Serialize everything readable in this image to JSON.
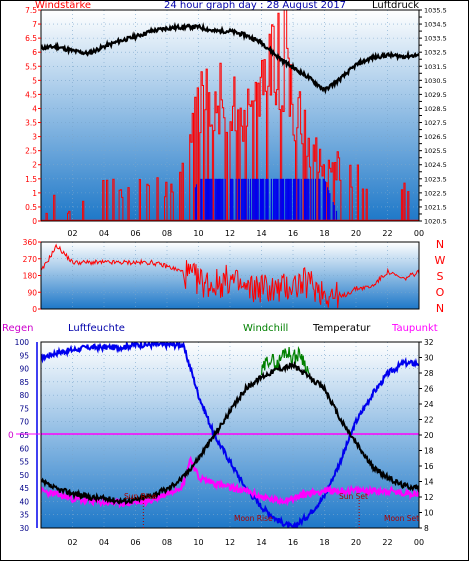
{
  "header": {
    "title": "24 hour graph day : 28 August 2017",
    "left_label": "Windstärke",
    "right_label": "Luftdruck"
  },
  "colors": {
    "red": "#ff0000",
    "blue": "#0000ee",
    "black": "#000000",
    "green": "#008000",
    "magenta": "#ff00ff",
    "navy": "#000088",
    "plot_top": "#ffffff",
    "plot_bottom": "#1e78c8"
  },
  "panel3_labels": {
    "regen": "Regen",
    "luftfeuchte": "Luftfeuchte",
    "windchill": "Windchill",
    "temperatur": "Temperatur",
    "taupunkt": "Taupunkt"
  },
  "direction_letters": [
    "N",
    "W",
    "S",
    "O",
    "N"
  ],
  "events": {
    "sun_rise": "Sun Rise",
    "sun_set": "Sun Set",
    "moon_rise": "Moon Rise",
    "moon_set": "Moon Set"
  },
  "rain_zero_label": "0",
  "chart_data": [
    {
      "type": "line",
      "title": "24 hour graph day : 28 August 2017",
      "xlabel": "",
      "ylabel": "",
      "x_ticks": [
        "02",
        "04",
        "06",
        "08",
        "10",
        "12",
        "14",
        "16",
        "18",
        "20",
        "22",
        "00"
      ],
      "left_axis": {
        "name": "Windstärke",
        "ylim": [
          0,
          7.5
        ],
        "ticks": [
          "0",
          "0.5",
          "1",
          "1.5",
          "2",
          "2.5",
          "3",
          "3.5",
          "4",
          "4.5",
          "5",
          "5.5",
          "6",
          "6.5",
          "7",
          "7.5"
        ]
      },
      "right_axis": {
        "name": "Luftdruck",
        "ylim": [
          1020.5,
          1035.5
        ],
        "ticks": [
          "1020.5",
          "1021",
          "1021.5",
          "1022",
          "1022.5",
          "1023",
          "1023.5",
          "1024",
          "1024.5",
          "1025",
          "1025.5",
          "1026",
          "1026.5",
          "1027",
          "1027.5",
          "1028",
          "1028.5",
          "1029",
          "1029.5",
          "1030",
          "1030.5",
          "1031",
          "1031.5",
          "1032",
          "1032.5",
          "1033",
          "1033.5",
          "1034",
          "1034.5",
          "1035",
          "1035.5"
        ]
      },
      "series": [
        {
          "name": "Luftdruck",
          "color": "#000000",
          "x": [
            0,
            1,
            2,
            3,
            4,
            5,
            6,
            7,
            8,
            9,
            10,
            11,
            12,
            13,
            14,
            15,
            16,
            17,
            18,
            19,
            20,
            21,
            22,
            23,
            24
          ],
          "y": [
            1032.8,
            1032.9,
            1032.6,
            1032.4,
            1032.9,
            1033.3,
            1033.6,
            1034.0,
            1034.2,
            1034.3,
            1034.3,
            1034.0,
            1034.0,
            1033.7,
            1033.2,
            1032.2,
            1031.4,
            1030.7,
            1029.8,
            1030.6,
            1031.6,
            1032.1,
            1032.3,
            1032.2,
            1032.3
          ]
        },
        {
          "name": "Windstärke (gust)",
          "color": "#ff0000",
          "x": [
            0,
            1,
            2,
            3,
            4,
            5,
            6,
            7,
            8,
            9,
            10,
            11,
            12,
            13,
            14,
            15,
            16,
            17,
            18,
            19,
            20,
            21,
            22,
            23,
            24
          ],
          "y": [
            0,
            1.5,
            0,
            1.5,
            1.5,
            1.5,
            1.5,
            1.5,
            1.5,
            2.5,
            5.0,
            5.5,
            5.5,
            5.0,
            5.5,
            7.5,
            5.0,
            3.5,
            2.0,
            2.5,
            2.0,
            1.5,
            1.5,
            1.5,
            1.5
          ]
        },
        {
          "name": "Windstärke (average)",
          "color": "#0000ee",
          "x": [
            0,
            1,
            2,
            3,
            4,
            5,
            6,
            7,
            8,
            9,
            10,
            11,
            12,
            13,
            14,
            15,
            16,
            17,
            18,
            19,
            20,
            21,
            22,
            23,
            24
          ],
          "y": [
            0,
            0,
            0,
            0,
            0,
            0,
            0,
            0,
            0,
            0,
            1.5,
            1.5,
            1.5,
            1.5,
            1.5,
            1.5,
            1.5,
            1.5,
            1.5,
            0,
            0,
            0,
            0,
            0,
            0
          ]
        }
      ]
    },
    {
      "type": "line",
      "title": "",
      "y_ticks": [
        "0",
        "90",
        "180",
        "270",
        "360"
      ],
      "ylim": [
        0,
        360
      ],
      "series": [
        {
          "name": "Windrichtung",
          "color": "#ff0000",
          "x": [
            0,
            1,
            2,
            3,
            4,
            5,
            6,
            7,
            8,
            9,
            10,
            11,
            12,
            13,
            14,
            15,
            16,
            17,
            18,
            19,
            20,
            21,
            22,
            23,
            24
          ],
          "y": [
            200,
            340,
            250,
            250,
            250,
            250,
            250,
            250,
            230,
            200,
            150,
            130,
            160,
            100,
            120,
            100,
            130,
            140,
            90,
            60,
            110,
            120,
            200,
            160,
            200
          ]
        }
      ]
    },
    {
      "type": "line",
      "title": "",
      "left_axis": {
        "name": "Luftfeuchte",
        "ylim": [
          30,
          100
        ],
        "ticks": [
          "30",
          "35",
          "40",
          "45",
          "50",
          "55",
          "60",
          "65",
          "70",
          "75",
          "80",
          "85",
          "90",
          "95",
          "100"
        ]
      },
      "right_axis": {
        "name": "Temperatur",
        "ylim": [
          8,
          32
        ],
        "ticks": [
          "8",
          "10",
          "12",
          "14",
          "16",
          "18",
          "20",
          "22",
          "24",
          "26",
          "28",
          "30",
          "32"
        ]
      },
      "series": [
        {
          "name": "Luftfeuchte",
          "color": "#0000ee",
          "x": [
            0,
            1,
            2,
            3,
            4,
            5,
            6,
            7,
            8,
            9,
            9.5,
            10,
            11,
            12,
            13,
            14,
            15,
            16,
            17,
            18,
            19,
            20,
            21,
            22,
            23,
            24
          ],
          "y": [
            94,
            96,
            97,
            98,
            98,
            98,
            99,
            99,
            99,
            99,
            90,
            80,
            65,
            55,
            45,
            38,
            33,
            30,
            35,
            42,
            55,
            70,
            80,
            88,
            92,
            92
          ]
        },
        {
          "name": "Temperatur",
          "color": "#000000",
          "x": [
            0,
            1,
            2,
            3,
            4,
            5,
            6,
            7,
            8,
            9,
            10,
            11,
            12,
            13,
            14,
            15,
            16,
            17,
            18,
            19,
            20,
            21,
            22,
            23,
            24
          ],
          "y": [
            14.0,
            13.0,
            12.5,
            12.0,
            11.8,
            11.5,
            11.6,
            12.2,
            13.0,
            14.5,
            17.0,
            20.0,
            23.0,
            26.0,
            27.5,
            28.5,
            29.0,
            27.5,
            26.0,
            22.0,
            19.0,
            16.0,
            14.5,
            13.5,
            13.2
          ]
        },
        {
          "name": "Windchill",
          "color": "#008000",
          "x": [
            14,
            14.5,
            15,
            15.5,
            16,
            16.5,
            17
          ],
          "y": [
            28,
            30,
            29,
            31,
            30,
            30.5,
            28
          ]
        },
        {
          "name": "Taupunkt",
          "color": "#ff00ff",
          "x": [
            0,
            1,
            2,
            3,
            4,
            5,
            6,
            7,
            8,
            9,
            9.5,
            10,
            11,
            12,
            13,
            14,
            15,
            16,
            17,
            18,
            19,
            20,
            21,
            22,
            23,
            24
          ],
          "y": [
            12.8,
            12.3,
            11.8,
            11.5,
            11.3,
            11.2,
            11.3,
            11.5,
            12.5,
            13.5,
            17.0,
            14.5,
            13.8,
            13.2,
            12.8,
            12.0,
            11.5,
            11.8,
            12.5,
            12.8,
            12.8,
            12.8,
            12.8,
            12.8,
            12.5,
            12.5
          ]
        }
      ]
    }
  ]
}
